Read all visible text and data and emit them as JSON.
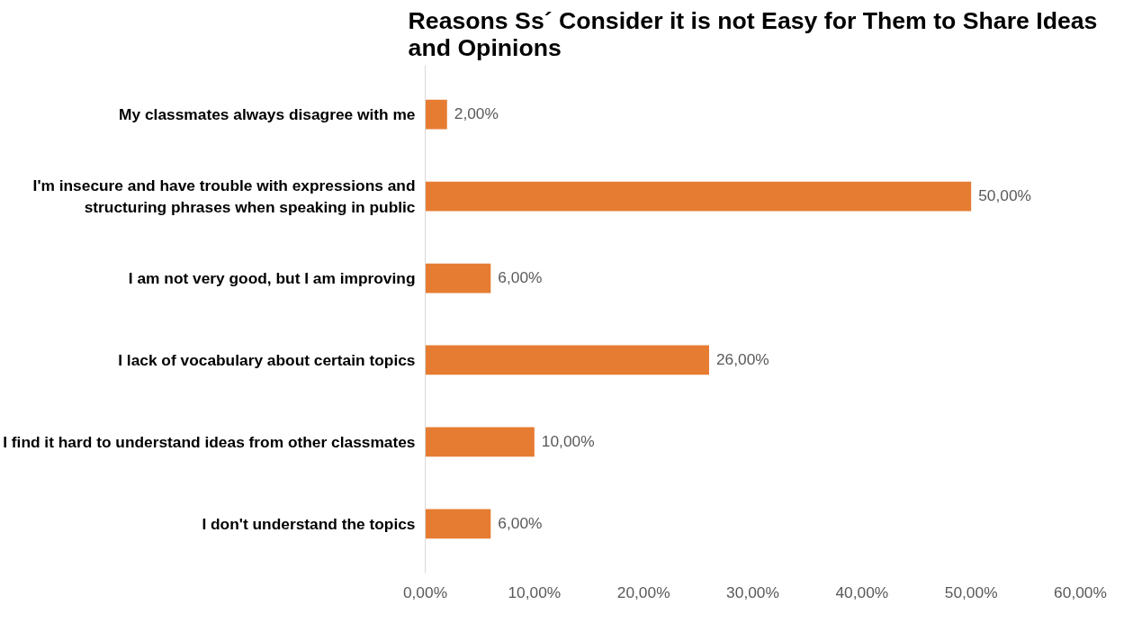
{
  "chart_data": {
    "type": "bar",
    "orientation": "horizontal",
    "title": "Reasons Ss´ Consider it is not Easy for Them to Share Ideas and Opinions",
    "categories": [
      "My classmates always disagree with me",
      "I'm insecure and have trouble with expressions and structuring phrases when speaking in public",
      "I am not very good, but I am improving",
      "I lack of vocabulary about certain topics",
      "I find it hard to understand ideas from other classmates",
      "I don't understand the topics"
    ],
    "values": [
      2,
      50,
      6,
      26,
      10,
      6
    ],
    "value_labels": [
      "2,00%",
      "50,00%",
      "6,00%",
      "26,00%",
      "10,00%",
      "6,00%"
    ],
    "color": "#e67c32",
    "xlim": [
      0,
      60
    ],
    "xticks": [
      {
        "value": 0,
        "label": "0,00%"
      },
      {
        "value": 10,
        "label": "10,00%"
      },
      {
        "value": 20,
        "label": "20,00%"
      },
      {
        "value": 30,
        "label": "30,00%"
      },
      {
        "value": 40,
        "label": "40,00%"
      },
      {
        "value": 50,
        "label": "50,00%"
      },
      {
        "value": 60,
        "label": "60,00%"
      }
    ],
    "grid": false
  }
}
